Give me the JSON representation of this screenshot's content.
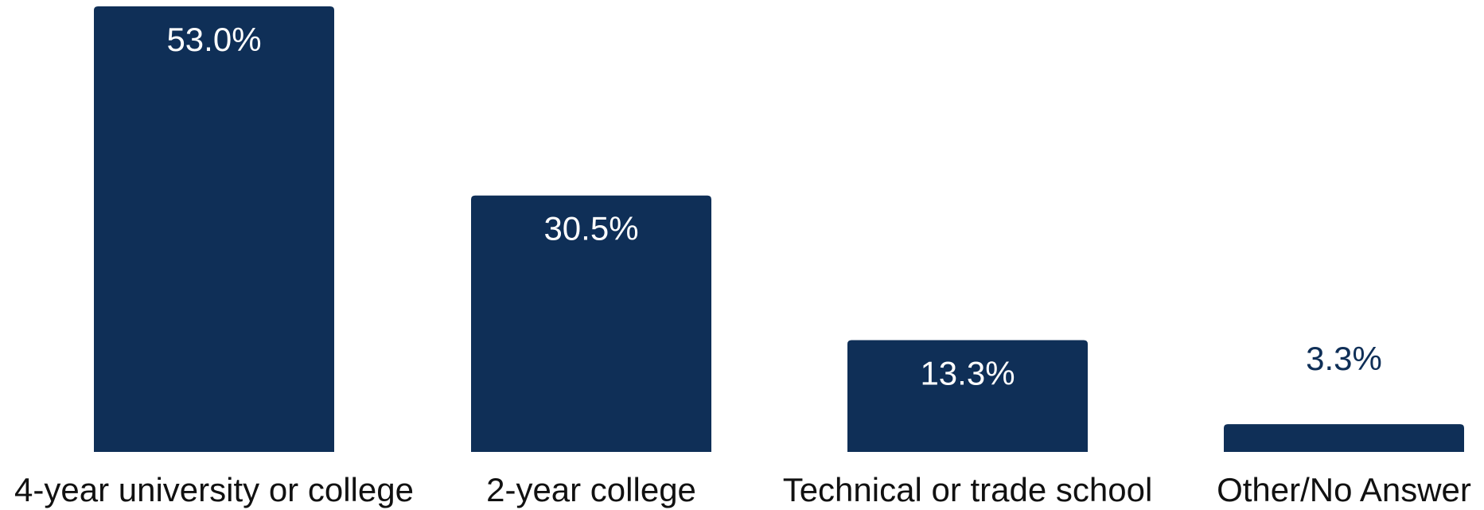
{
  "chart_data": {
    "type": "bar",
    "categories": [
      "4-year university or college",
      "2-year college",
      "Technical or trade school",
      "Other/No Answer"
    ],
    "values": [
      53.0,
      30.5,
      13.3,
      3.3
    ],
    "value_labels": [
      "53.0%",
      "30.5%",
      "13.3%",
      "3.3%"
    ],
    "title": "",
    "xlabel": "",
    "ylabel": "",
    "ylim": [
      0,
      53.0
    ],
    "grid": false,
    "legend": "none"
  },
  "colors": {
    "bar": "#0f2f57",
    "label_inside": "#ffffff",
    "label_outside": "#0f2f57",
    "category_text": "#111111"
  }
}
